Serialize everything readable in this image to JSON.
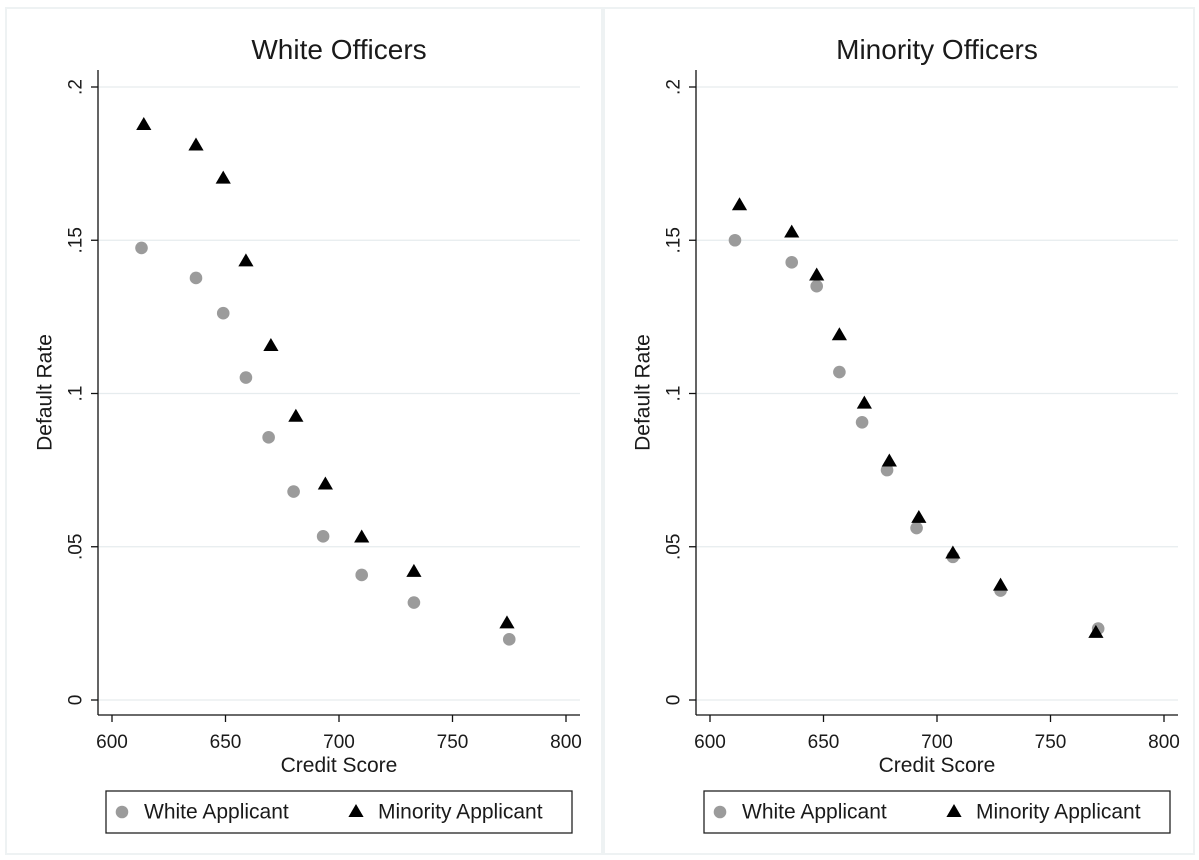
{
  "colors": {
    "white_applicant": "#9b9b9b",
    "minority_applicant": "#000000"
  },
  "chart_data": [
    {
      "type": "scatter",
      "title": "White Officers",
      "xlabel": "Credit Score",
      "ylabel": "Default Rate",
      "xlim": [
        600,
        800
      ],
      "ylim": [
        0,
        0.2
      ],
      "xticks": [
        600,
        650,
        700,
        750,
        800
      ],
      "xtick_labels": [
        "600",
        "650",
        "700",
        "750",
        "800"
      ],
      "yticks": [
        0,
        0.05,
        0.1,
        0.15,
        0.2
      ],
      "ytick_labels": [
        "0",
        ".05",
        ".1",
        ".15",
        ".2"
      ],
      "grid": true,
      "legend_position": "bottom",
      "series": [
        {
          "name": "White Applicant",
          "marker": "circle",
          "x": [
            613,
            637,
            649,
            659,
            669,
            680,
            693,
            710,
            733,
            775
          ],
          "y": [
            0.1475,
            0.1377,
            0.1262,
            0.1052,
            0.0857,
            0.068,
            0.0534,
            0.0408,
            0.0318,
            0.0198
          ]
        },
        {
          "name": "Minority Applicant",
          "marker": "triangle",
          "x": [
            614,
            637,
            649,
            659,
            670,
            681,
            694,
            710,
            733,
            774
          ],
          "y": [
            0.1876,
            0.1809,
            0.1701,
            0.1431,
            0.1155,
            0.0924,
            0.0703,
            0.053,
            0.0418,
            0.025
          ]
        }
      ]
    },
    {
      "type": "scatter",
      "title": "Minority Officers",
      "xlabel": "Credit Score",
      "ylabel": "Default Rate",
      "xlim": [
        600,
        800
      ],
      "ylim": [
        0,
        0.2
      ],
      "xticks": [
        600,
        650,
        700,
        750,
        800
      ],
      "xtick_labels": [
        "600",
        "650",
        "700",
        "750",
        "800"
      ],
      "yticks": [
        0,
        0.05,
        0.1,
        0.15,
        0.2
      ],
      "ytick_labels": [
        "0",
        ".05",
        ".1",
        ".15",
        ".2"
      ],
      "grid": true,
      "legend_position": "bottom",
      "series": [
        {
          "name": "White Applicant",
          "marker": "circle",
          "x": [
            611,
            636,
            647,
            657,
            667,
            678,
            691,
            707,
            728,
            771
          ],
          "y": [
            0.15,
            0.1428,
            0.135,
            0.107,
            0.0906,
            0.075,
            0.0561,
            0.0467,
            0.0357,
            0.0233
          ]
        },
        {
          "name": "Minority Applicant",
          "marker": "triangle",
          "x": [
            613,
            636,
            647,
            657,
            668,
            679,
            692,
            707,
            728,
            770
          ],
          "y": [
            0.1614,
            0.1525,
            0.1385,
            0.119,
            0.0967,
            0.0778,
            0.0594,
            0.0478,
            0.0373,
            0.0219
          ]
        }
      ]
    }
  ]
}
